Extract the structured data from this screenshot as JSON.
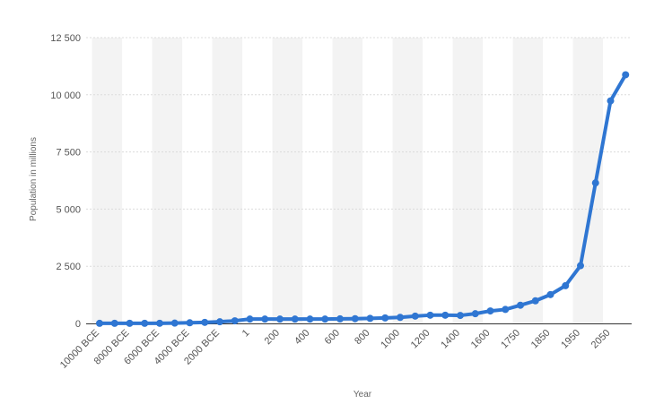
{
  "chart_data": {
    "type": "line",
    "title": "",
    "xlabel": "Year",
    "ylabel": "Population in millions",
    "ylim": [
      0,
      12500
    ],
    "y_ticks": [
      0,
      2500,
      5000,
      7500,
      10000,
      12500
    ],
    "y_tick_labels": [
      "0",
      "2 500",
      "5 000",
      "7 500",
      "10 000",
      "12 500"
    ],
    "grid": true,
    "legend": "none",
    "x_tick_labels": [
      "10000 BCE",
      "8000 BCE",
      "6000 BCE",
      "4000 BCE",
      "2000 BCE",
      "1",
      "200",
      "400",
      "600",
      "800",
      "1000",
      "1200",
      "1400",
      "1600",
      "1750",
      "1850",
      "1950",
      "2050"
    ],
    "categories": [
      "10000 BCE",
      "9000 BCE",
      "8000 BCE",
      "7000 BCE",
      "6000 BCE",
      "5000 BCE",
      "4000 BCE",
      "3000 BCE",
      "2000 BCE",
      "1000 BCE",
      "1",
      "100",
      "200",
      "300",
      "400",
      "500",
      "600",
      "700",
      "800",
      "900",
      "1000",
      "1100",
      "1200",
      "1300",
      "1400",
      "1500",
      "1600",
      "1700",
      "1750",
      "1800",
      "1850",
      "1900",
      "1950",
      "2000",
      "2050",
      "2100"
    ],
    "series": [
      {
        "values": [
          4,
          5,
          5,
          5,
          7,
          14,
          27,
          45,
          72,
          115,
          190,
          190,
          190,
          190,
          190,
          190,
          200,
          207,
          220,
          240,
          265,
          320,
          360,
          360,
          350,
          425,
          545,
          610,
          795,
          990,
          1260,
          1650,
          2525,
          6145,
          9735,
          10875
        ]
      }
    ],
    "colors": {
      "line": "#2f76d2",
      "grid": "#dcdcdc",
      "band": "#f3f3f3",
      "baseline": "#333333"
    }
  }
}
